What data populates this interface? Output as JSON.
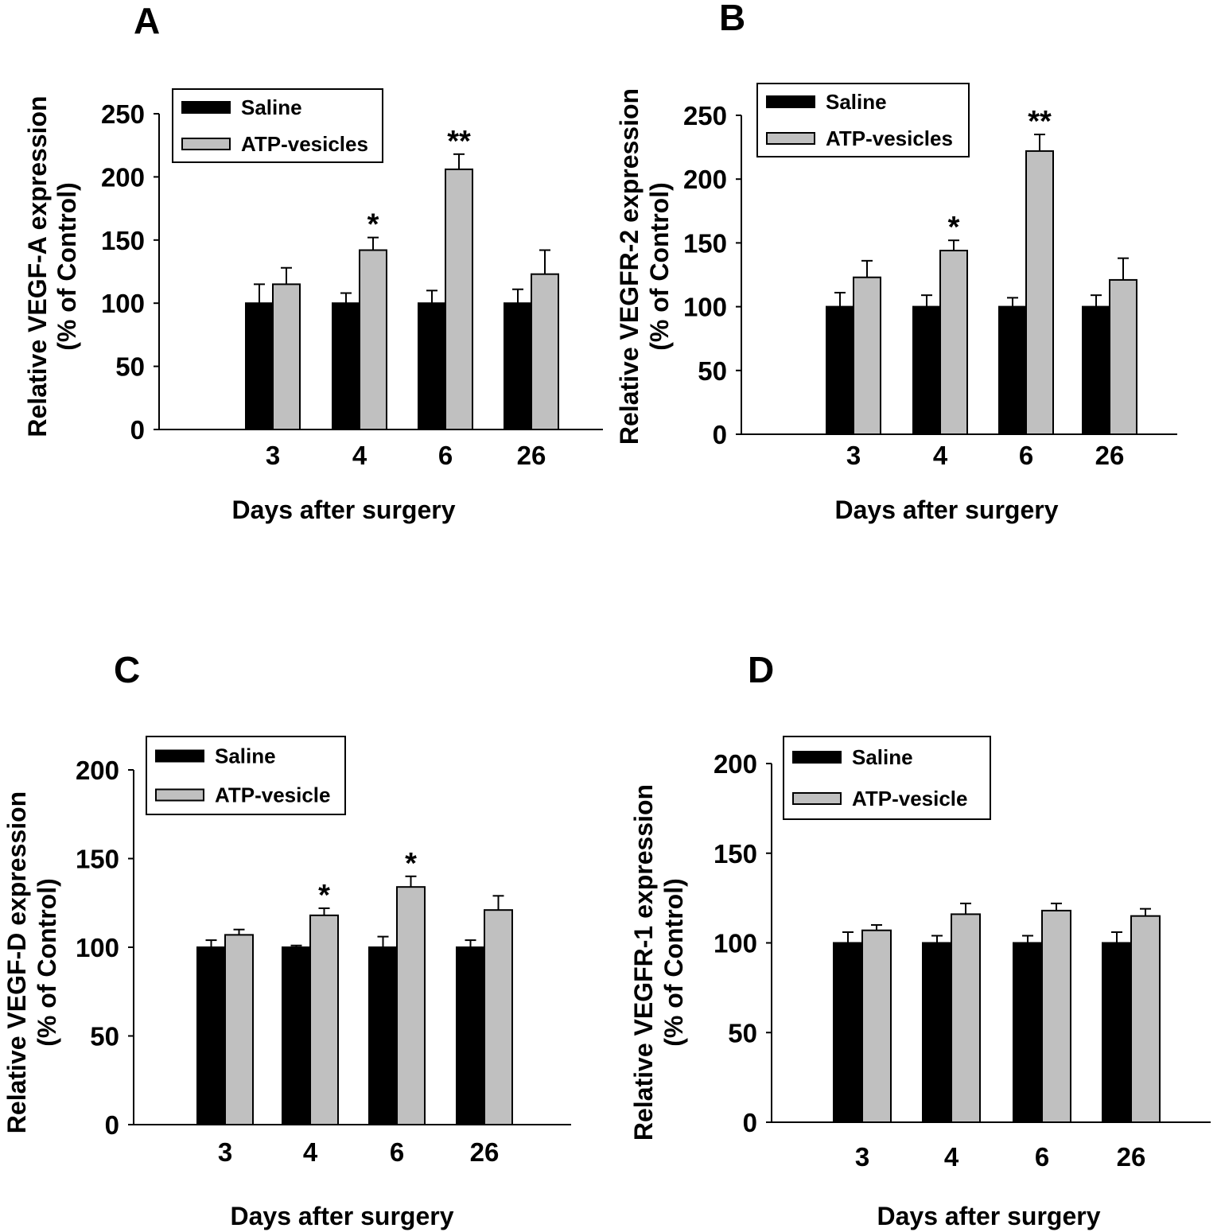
{
  "figure": {
    "background": "#ffffff",
    "saline_color": "#000000",
    "atp_color": "#c0c0c0"
  },
  "chart_data": [
    {
      "panel": "A",
      "type": "bar",
      "xlabel": "Days after surgery",
      "ylabel_line1": "Relative VEGF-A expression",
      "ylabel_line2": "(% of Control)",
      "categories": [
        "3",
        "4",
        "6",
        "26"
      ],
      "ylim": [
        0,
        250
      ],
      "yticks": [
        0,
        50,
        100,
        150,
        200,
        250
      ],
      "series": [
        {
          "name": "Saline",
          "values": [
            100,
            100,
            100,
            100
          ],
          "errors": [
            15,
            8,
            10,
            11
          ]
        },
        {
          "name": "ATP-vesicles",
          "values": [
            115,
            142,
            206,
            123
          ],
          "errors": [
            13,
            10,
            12,
            19
          ]
        }
      ],
      "significance": [
        "",
        "*",
        "**",
        ""
      ]
    },
    {
      "panel": "B",
      "type": "bar",
      "xlabel": "Days after surgery",
      "ylabel_line1": "Relative VEGFR-2 expression",
      "ylabel_line2": "(% of Control)",
      "categories": [
        "3",
        "4",
        "6",
        "26"
      ],
      "ylim": [
        0,
        250
      ],
      "yticks": [
        0,
        50,
        100,
        150,
        200,
        250
      ],
      "series": [
        {
          "name": "Saline",
          "values": [
            100,
            100,
            100,
            100
          ],
          "errors": [
            11,
            9,
            7,
            9
          ]
        },
        {
          "name": "ATP-vesicles",
          "values": [
            123,
            144,
            222,
            121
          ],
          "errors": [
            13,
            8,
            13,
            17
          ]
        }
      ],
      "significance": [
        "",
        "*",
        "**",
        ""
      ]
    },
    {
      "panel": "C",
      "type": "bar",
      "xlabel": "Days after surgery",
      "ylabel_line1": "Relative VEGF-D expression",
      "ylabel_line2": "(% of Control)",
      "categories": [
        "3",
        "4",
        "6",
        "26"
      ],
      "ylim": [
        0,
        200
      ],
      "yticks": [
        0,
        50,
        100,
        150,
        200
      ],
      "series": [
        {
          "name": "Saline",
          "values": [
            100,
            100,
            100,
            100
          ],
          "errors": [
            4,
            1,
            6,
            4
          ]
        },
        {
          "name": "ATP-vesicle",
          "values": [
            107,
            118,
            134,
            121
          ],
          "errors": [
            3,
            4,
            6,
            8
          ]
        }
      ],
      "significance": [
        "",
        "*",
        "*",
        ""
      ]
    },
    {
      "panel": "D",
      "type": "bar",
      "xlabel": "Days after surgery",
      "ylabel_line1": "Relative VEGFR-1 expression",
      "ylabel_line2": "(% of Control)",
      "categories": [
        "3",
        "4",
        "6",
        "26"
      ],
      "ylim": [
        0,
        200
      ],
      "yticks": [
        0,
        50,
        100,
        150,
        200
      ],
      "series": [
        {
          "name": "Saline",
          "values": [
            100,
            100,
            100,
            100
          ],
          "errors": [
            6,
            4,
            4,
            6
          ]
        },
        {
          "name": "ATP-vesicle",
          "values": [
            107,
            116,
            118,
            115
          ],
          "errors": [
            3,
            6,
            4,
            4
          ]
        }
      ],
      "significance": [
        "",
        "",
        "",
        ""
      ]
    }
  ]
}
